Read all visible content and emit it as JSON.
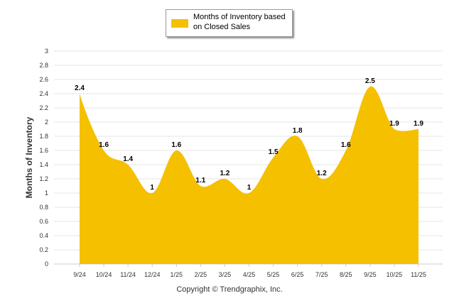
{
  "chart_data": {
    "type": "area",
    "categories": [
      "9/24",
      "10/24",
      "11/24",
      "12/24",
      "1/25",
      "2/25",
      "3/25",
      "4/25",
      "5/25",
      "6/25",
      "7/25",
      "8/25",
      "9/25",
      "10/25",
      "11/25"
    ],
    "series": [
      {
        "name": "Months of Inventory based on Closed Sales",
        "values": [
          2.4,
          1.6,
          1.4,
          1,
          1.6,
          1.1,
          1.2,
          1,
          1.5,
          1.8,
          1.2,
          1.6,
          2.5,
          1.9,
          1.9
        ]
      }
    ],
    "data_labels": [
      "2.4",
      "1.6",
      "1.4",
      "1",
      "1.6",
      "1.1",
      "1.2",
      "1",
      "1.5",
      "1.8",
      "1.2",
      "1.6",
      "2.5",
      "1.9",
      "1.9"
    ],
    "ylabel": "Months of Inventory",
    "xlabel": "",
    "ylim": [
      0,
      3
    ],
    "yticks": [
      "0",
      "0.2",
      "0.4",
      "0.6",
      "0.8",
      "1",
      "1.2",
      "1.4",
      "1.6",
      "1.8",
      "2",
      "2.2",
      "2.4",
      "2.6",
      "2.8",
      "3"
    ],
    "grid": true,
    "legend_position": "top-center",
    "fill_color": "#F5C000",
    "grid_color": "#e6e6e6"
  },
  "legend": {
    "label": "Months of Inventory based on Closed Sales"
  },
  "footer": {
    "copyright": "Copyright © Trendgraphix, Inc."
  }
}
